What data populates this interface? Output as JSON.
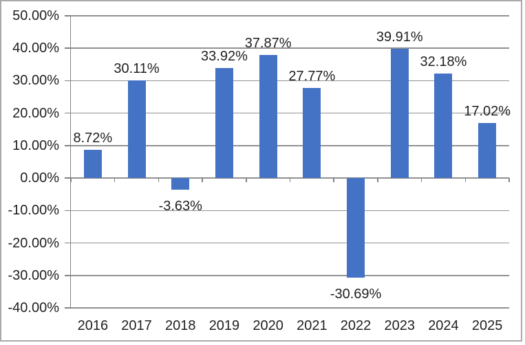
{
  "chart_data": {
    "type": "bar",
    "title": "",
    "xlabel": "",
    "ylabel": "",
    "categories": [
      "2016",
      "2017",
      "2018",
      "2019",
      "2020",
      "2021",
      "2022",
      "2023",
      "2024",
      "2025"
    ],
    "values": [
      8.72,
      30.11,
      -3.63,
      33.92,
      37.87,
      27.77,
      -30.69,
      39.91,
      32.18,
      17.02
    ],
    "labels": [
      "8.72%",
      "30.11%",
      "-3.63%",
      "33.92%",
      "37.87%",
      "27.77%",
      "-30.69%",
      "39.91%",
      "32.18%",
      "17.02%"
    ],
    "ylim": [
      -40,
      50
    ],
    "ytick_values": [
      50,
      40,
      30,
      20,
      10,
      0,
      -10,
      -20,
      -30,
      -40
    ],
    "ytick_labels": [
      "50.00%",
      "40.00%",
      "30.00%",
      "20.00%",
      "10.00%",
      "0.00%",
      "-10.00%",
      "-20.00%",
      "-30.00%",
      "-40.00%"
    ],
    "legend_position": "none",
    "grid": "horizontal",
    "bar_color": "#4472c4",
    "gridline_color": "#909090",
    "axis_color": "#808080",
    "text_color": "#1f1f1f",
    "frame_border_color": "#a9a9a9"
  }
}
